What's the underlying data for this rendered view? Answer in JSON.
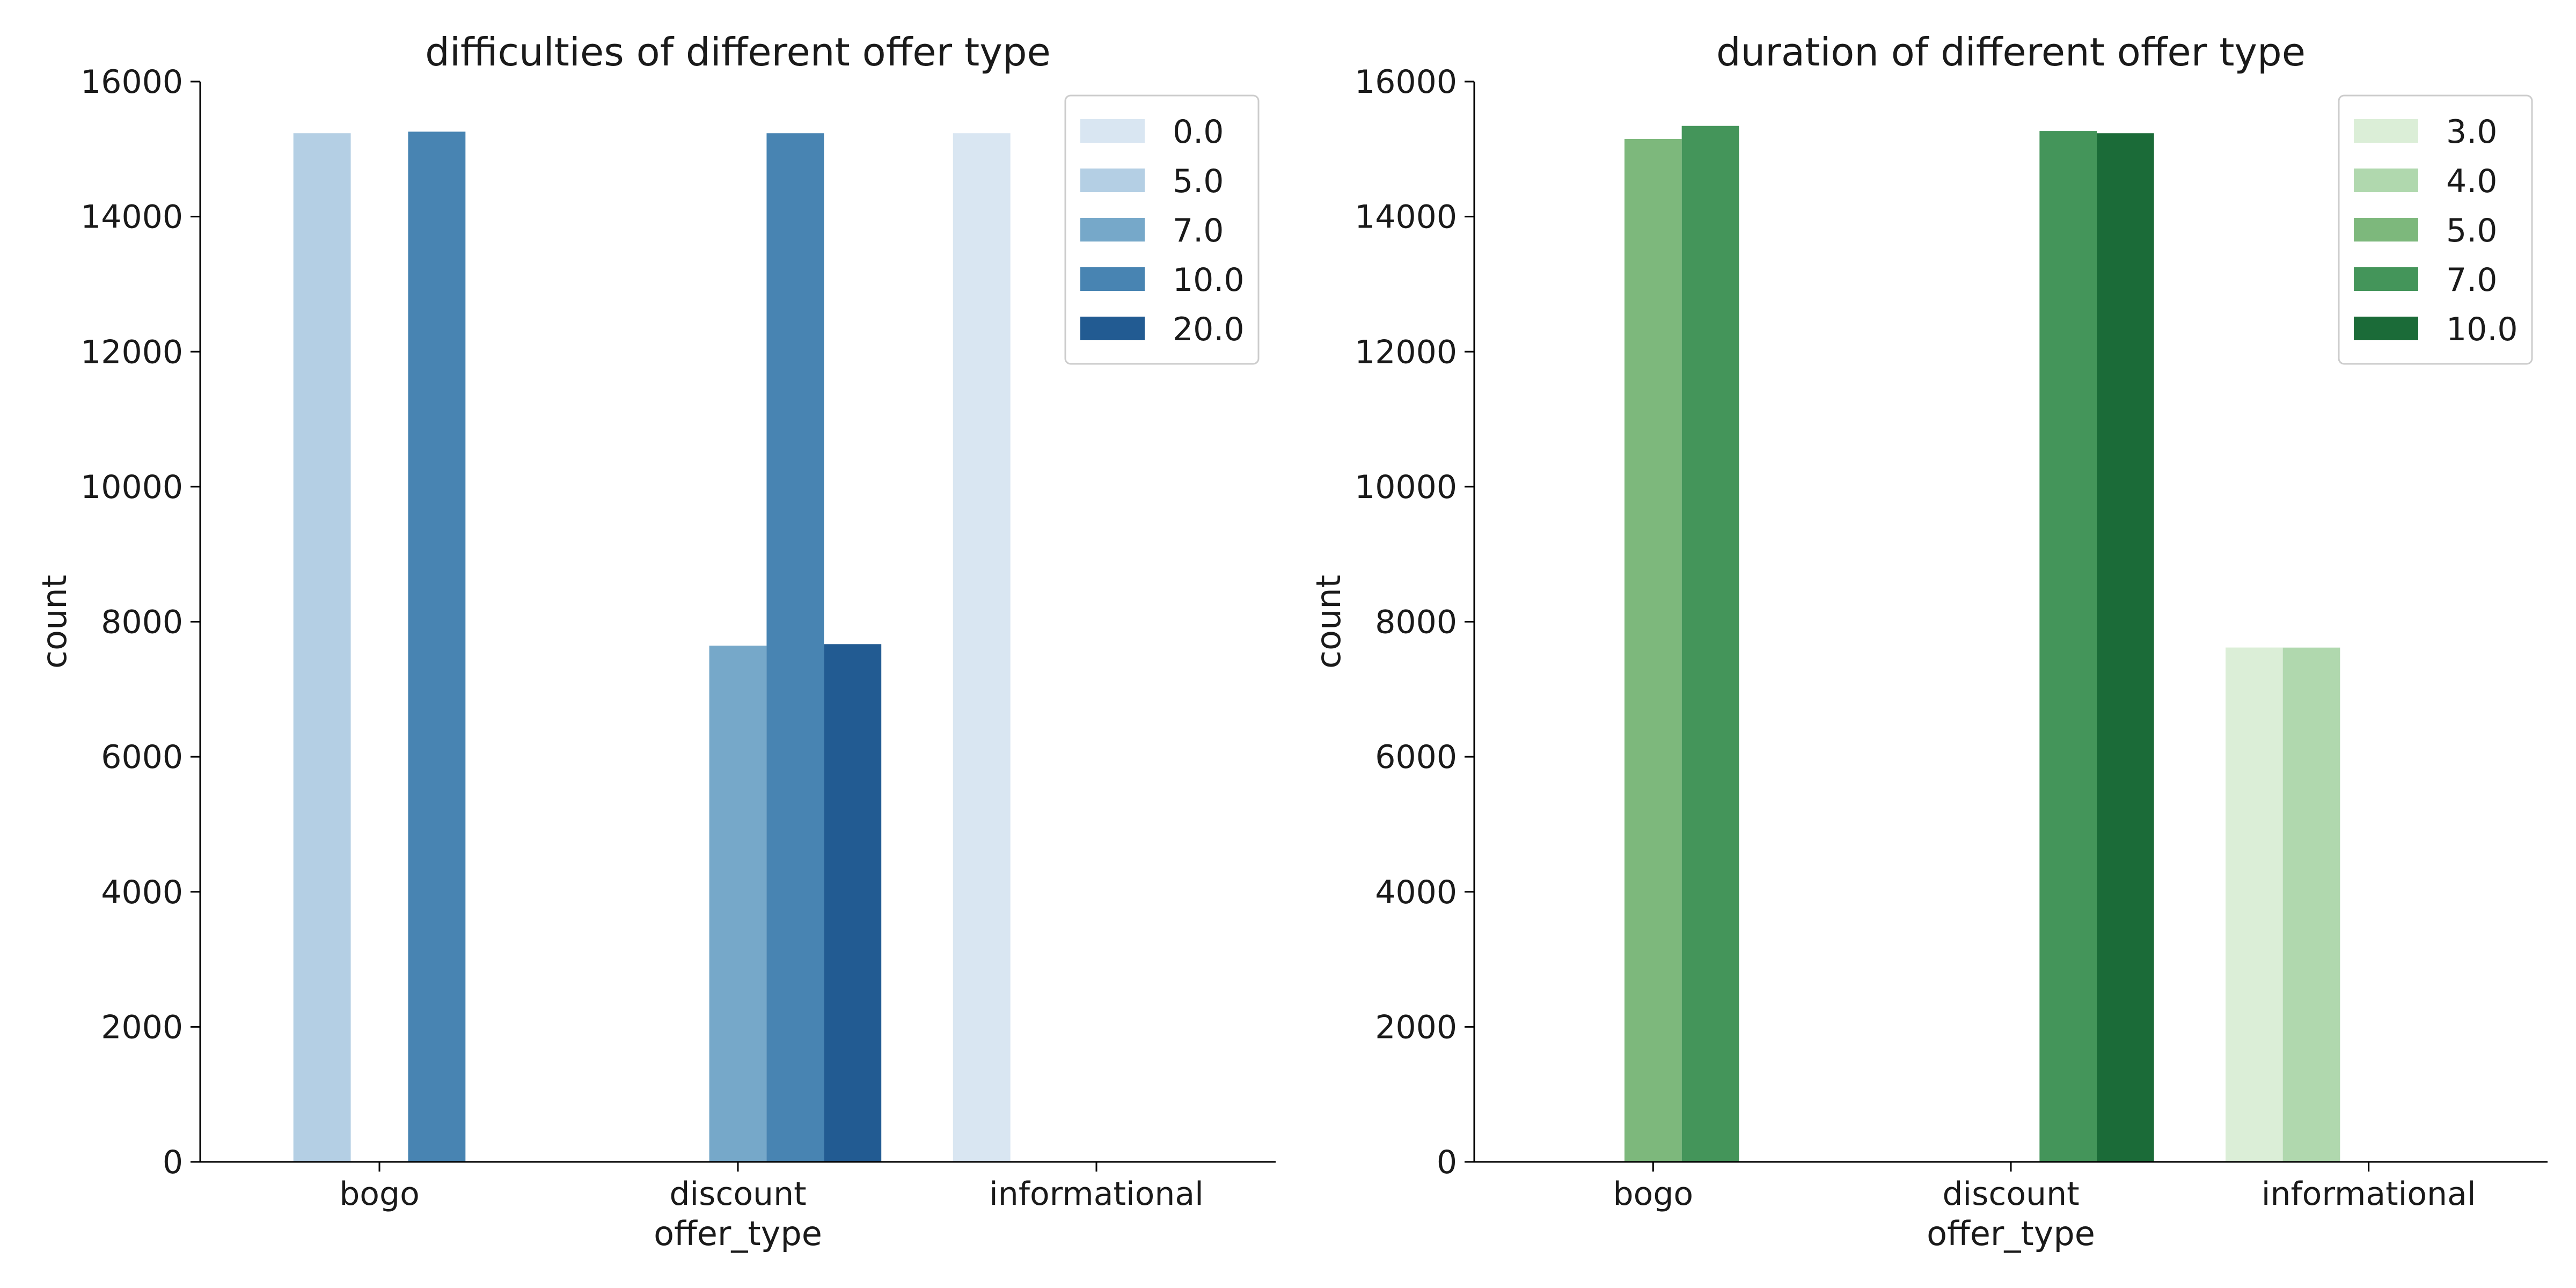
{
  "chart_data": [
    {
      "type": "bar",
      "title": "difficulties of different offer type",
      "xlabel": "offer_type",
      "ylabel": "count",
      "categories": [
        "bogo",
        "discount",
        "informational"
      ],
      "ylim": [
        0,
        16000
      ],
      "yticks": [
        0,
        2000,
        4000,
        6000,
        8000,
        10000,
        12000,
        14000,
        16000
      ],
      "legend_position": "top-right",
      "grid": false,
      "series": [
        {
          "name": "0.0",
          "color": "#d9e6f2",
          "values": [
            0,
            0,
            15235
          ]
        },
        {
          "name": "5.0",
          "color": "#b4cfe4",
          "values": [
            15235,
            0,
            0
          ]
        },
        {
          "name": "7.0",
          "color": "#76a8c9",
          "values": [
            0,
            7646,
            0
          ]
        },
        {
          "name": "10.0",
          "color": "#4884b2",
          "values": [
            15258,
            15235,
            0
          ]
        },
        {
          "name": "20.0",
          "color": "#225b92",
          "values": [
            0,
            7668,
            0
          ]
        }
      ]
    },
    {
      "type": "bar",
      "title": "duration of different offer type",
      "xlabel": "offer_type",
      "ylabel": "count",
      "categories": [
        "bogo",
        "discount",
        "informational"
      ],
      "ylim": [
        0,
        16000
      ],
      "yticks": [
        0,
        2000,
        4000,
        6000,
        8000,
        10000,
        12000,
        14000,
        16000
      ],
      "legend_position": "top-right",
      "grid": false,
      "series": [
        {
          "name": "3.0",
          "color": "#dbeed7",
          "values": [
            0,
            0,
            7618
          ]
        },
        {
          "name": "4.0",
          "color": "#b0d8ae",
          "values": [
            0,
            0,
            7617
          ]
        },
        {
          "name": "5.0",
          "color": "#7db87c",
          "values": [
            15150,
            0,
            0
          ]
        },
        {
          "name": "7.0",
          "color": "#44955a",
          "values": [
            15343,
            15268,
            0
          ]
        },
        {
          "name": "10.0",
          "color": "#1b6b38",
          "values": [
            0,
            15235,
            0
          ]
        }
      ]
    }
  ]
}
